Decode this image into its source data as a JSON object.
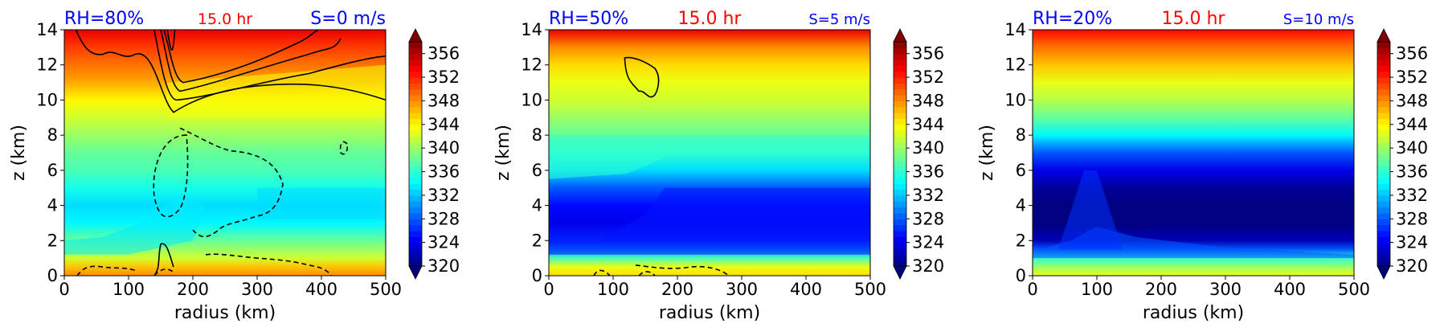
{
  "colorbar": {
    "ticks": [
      "320",
      "324",
      "328",
      "332",
      "336",
      "340",
      "344",
      "348",
      "352",
      "356"
    ],
    "min": 320,
    "max": 358,
    "extend": "both",
    "colormap": "jet"
  },
  "chart_data": [
    {
      "type": "heatmap",
      "left_title": "RH=80%",
      "center_title": "15.0 hr",
      "right_title": "S=0 m/s",
      "left_title_color": "#0000ff",
      "center_title_color": "#ff0000",
      "right_title_color": "#0000ff",
      "xlabel": "radius (km)",
      "ylabel": "z (km)",
      "xlim": [
        0,
        500
      ],
      "ylim": [
        0,
        14
      ],
      "xticks": [
        "0",
        "100",
        "200",
        "300",
        "400",
        "500"
      ],
      "yticks": [
        "0",
        "2",
        "4",
        "6",
        "8",
        "10",
        "12",
        "14"
      ],
      "profile": [
        [
          0,
          348
        ],
        [
          0.5,
          346
        ],
        [
          1,
          342
        ],
        [
          2,
          338
        ],
        [
          3,
          334
        ],
        [
          4,
          333
        ],
        [
          5,
          335
        ],
        [
          6,
          337
        ],
        [
          7,
          338
        ],
        [
          8,
          340
        ],
        [
          9,
          342
        ],
        [
          10,
          344
        ],
        [
          11,
          347
        ],
        [
          12,
          349
        ],
        [
          13,
          351
        ],
        [
          14,
          354
        ]
      ],
      "contours": "solid positive contours above 9 km and near 0-2 km at r~150-170 km; dashed negative contours at mid-levels"
    },
    {
      "type": "heatmap",
      "left_title": "RH=50%",
      "center_title": "15.0 hr",
      "right_title": "S=5 m/s",
      "left_title_color": "#0000ff",
      "center_title_color": "#ff0000",
      "right_title_color": "#0000ff",
      "xlabel": "radius (km)",
      "ylabel": "z (km)",
      "xlim": [
        0,
        500
      ],
      "ylim": [
        0,
        14
      ],
      "xticks": [
        "0",
        "100",
        "200",
        "300",
        "400",
        "500"
      ],
      "yticks": [
        "0",
        "2",
        "4",
        "6",
        "8",
        "10",
        "12",
        "14"
      ],
      "profile": [
        [
          0,
          345
        ],
        [
          0.5,
          343
        ],
        [
          1,
          337
        ],
        [
          1.5,
          330
        ],
        [
          2,
          326
        ],
        [
          3,
          324
        ],
        [
          4,
          325
        ],
        [
          5,
          328
        ],
        [
          6,
          333
        ],
        [
          7,
          336
        ],
        [
          8,
          338
        ],
        [
          9,
          340
        ],
        [
          10,
          342
        ],
        [
          11,
          343
        ],
        [
          12,
          345
        ],
        [
          13,
          348
        ],
        [
          14,
          354
        ]
      ],
      "contours": "solid closed contour near r~120-170 km, z~10-12.5 km; dashed contours near surface"
    },
    {
      "type": "heatmap",
      "left_title": "RH=20%",
      "center_title": "15.0 hr",
      "right_title": "S=10 m/s",
      "left_title_color": "#0000ff",
      "center_title_color": "#ff0000",
      "right_title_color": "#0000ff",
      "xlabel": "radius (km)",
      "ylabel": "z (km)",
      "xlim": [
        0,
        500
      ],
      "ylim": [
        0,
        14
      ],
      "xticks": [
        "0",
        "100",
        "200",
        "300",
        "400",
        "500"
      ],
      "yticks": [
        "0",
        "2",
        "4",
        "6",
        "8",
        "10",
        "12",
        "14"
      ],
      "profile": [
        [
          0,
          343
        ],
        [
          0.5,
          340
        ],
        [
          1,
          336
        ],
        [
          1.5,
          328
        ],
        [
          2,
          322
        ],
        [
          3,
          320
        ],
        [
          4,
          320
        ],
        [
          5,
          321
        ],
        [
          6,
          324
        ],
        [
          7,
          328
        ],
        [
          8,
          334
        ],
        [
          9,
          338
        ],
        [
          10,
          341
        ],
        [
          11,
          343
        ],
        [
          12,
          346
        ],
        [
          13,
          349
        ],
        [
          14,
          353
        ]
      ],
      "contours": "none"
    }
  ]
}
